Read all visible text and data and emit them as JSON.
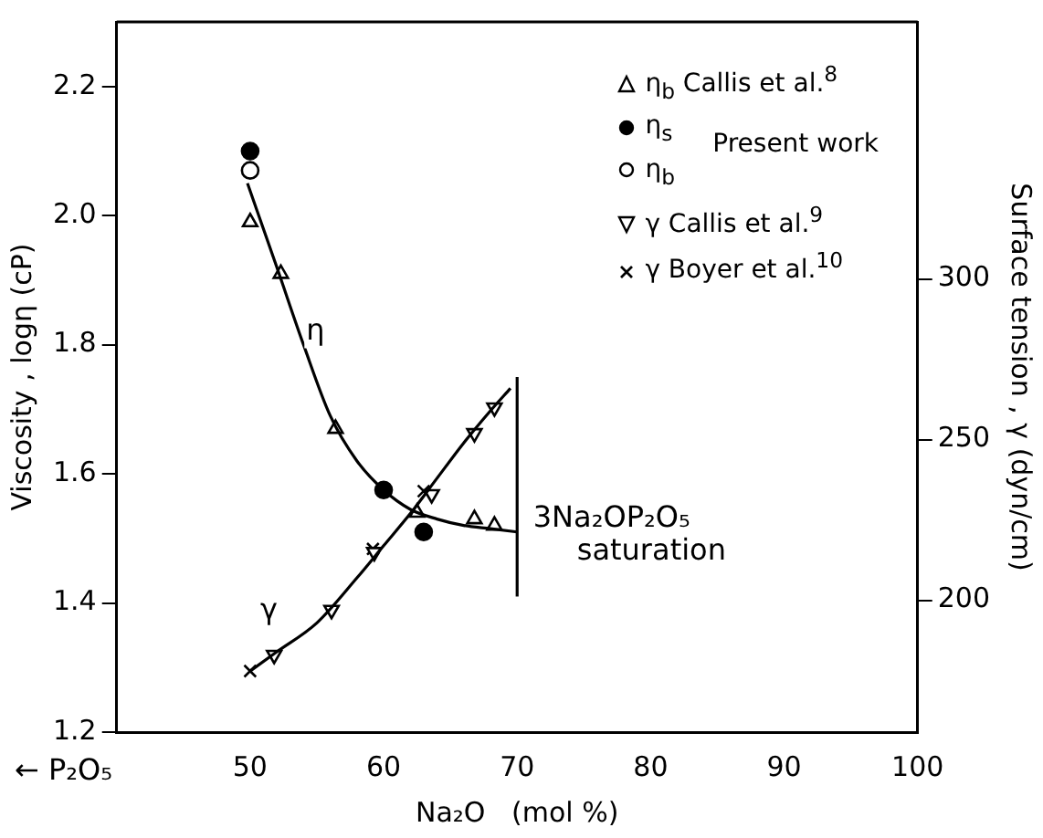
{
  "chart_data": {
    "type": "scatter",
    "xlabel": "Na₂O   (mol %)",
    "ylabel": "Viscosity , logη (cP)",
    "y2label": "Surface tension , γ (dyn/cm)",
    "xlim": [
      40,
      100
    ],
    "xticks": [
      50,
      60,
      70,
      80,
      90,
      100
    ],
    "ylim": [
      1.2,
      2.3
    ],
    "yticks": [
      {
        "value": 1.2,
        "label": "1.2"
      },
      {
        "value": 1.4,
        "label": "1.4"
      },
      {
        "value": 1.6,
        "label": "1.6"
      },
      {
        "value": 1.8,
        "label": "1.8"
      },
      {
        "value": 2,
        "label": "2.0"
      },
      {
        "value": 2.2,
        "label": "2.2"
      }
    ],
    "y2lim": [
      159,
      380
    ],
    "y2ticks": [
      200,
      250,
      300
    ],
    "grid": false,
    "legend": "top right",
    "legend_title": "Present work",
    "series": [
      {
        "type": "line",
        "color": "#000000",
        "marker": "none",
        "x": [
          49.8,
          52,
          54,
          56,
          58,
          60,
          62,
          64,
          66,
          68,
          70
        ],
        "values": [
          2.05,
          1.92,
          1.8,
          1.69,
          1.62,
          1.575,
          1.545,
          1.53,
          1.52,
          1.515,
          1.51
        ]
      },
      {
        "type": "line",
        "color": "#000000",
        "marker": "none",
        "axis": "y2",
        "x": [
          50,
          52,
          55,
          58,
          60,
          62,
          64,
          66,
          68,
          69.5
        ],
        "values": [
          178,
          184,
          193,
          207,
          217,
          227,
          238,
          249,
          259,
          266
        ]
      },
      {
        "type": "line",
        "color": "#000000",
        "marker": "none",
        "x": [
          70,
          70
        ],
        "values": [
          1.41,
          1.75
        ]
      },
      {
        "name": "η$_{b}$ Callis et al.$^{8}$",
        "color": "#000000",
        "marker": "triangle",
        "x": [
          50,
          52.3,
          56.4,
          62.5,
          66.8,
          68.3
        ],
        "values": [
          1.99,
          1.91,
          1.67,
          1.54,
          1.53,
          1.52
        ]
      },
      {
        "name": "η$_{s}$",
        "color": "#000000",
        "marker": "circle",
        "x": [
          50,
          60,
          63
        ],
        "values": [
          2.1,
          1.575,
          1.51
        ]
      },
      {
        "name": "η$_{b}$",
        "color": "#000000",
        "marker": "circle",
        "x": [
          50
        ],
        "values": [
          2.07
        ]
      },
      {
        "name": "γ Callis et al.$^{9}$",
        "color": "#000000",
        "marker": "triangle-down",
        "axis": "y2",
        "x": [
          51.8,
          56.1,
          59.3,
          63.6,
          66.8,
          68.3
        ],
        "values": [
          183,
          197,
          215,
          233,
          252,
          260
        ]
      },
      {
        "name": "γ Boyer et al.$^{10}$",
        "color": "#000000",
        "marker": "cross",
        "axis": "y2",
        "x": [
          50,
          59.2,
          63
        ],
        "values": [
          178,
          216,
          234
        ]
      }
    ],
    "annotations": [
      {
        "text": "η",
        "x": 53.8,
        "y": 1.82
      },
      "γ",
      "3Na₂OP₂O₅ saturation",
      "← P₂O₅"
    ]
  }
}
